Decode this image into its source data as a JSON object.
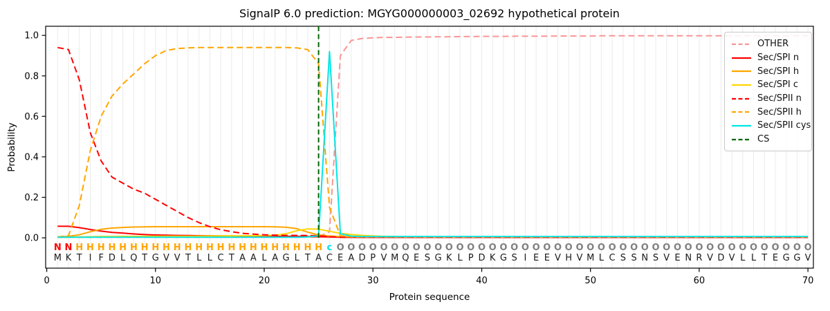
{
  "figure": {
    "title": "SignalP 6.0 prediction: MGYG000000003_02692 hypothetical protein",
    "xlabel": "Protein sequence",
    "ylabel": "Probability"
  },
  "chart_data": {
    "type": "line",
    "title": "SignalP 6.0 prediction: MGYG000000003_02692 hypothetical protein",
    "xlabel": "Protein sequence",
    "ylabel": "Probability",
    "x_range": [
      1,
      70
    ],
    "xlim": [
      -0.1,
      70.5
    ],
    "ylim": [
      -0.15,
      1.045
    ],
    "xticks": [
      0,
      10,
      20,
      30,
      40,
      50,
      60,
      70
    ],
    "yticks": [
      0.0,
      0.2,
      0.4,
      0.6,
      0.8,
      1.0
    ],
    "ytick_labels": [
      "0.0",
      "0.2",
      "0.4",
      "0.6",
      "0.8",
      "1.0"
    ],
    "grid": "vertical gridline at every residue position 1-70",
    "legend_position": "upper-right",
    "series": [
      {
        "name": "OTHER",
        "color": "#f99595",
        "dash": true,
        "values": [
          0.003,
          0.003,
          0.003,
          0.003,
          0.003,
          0.003,
          0.003,
          0.003,
          0.003,
          0.003,
          0.003,
          0.003,
          0.003,
          0.003,
          0.003,
          0.003,
          0.003,
          0.003,
          0.003,
          0.003,
          0.003,
          0.003,
          0.003,
          0.003,
          0.005,
          0.03,
          0.9,
          0.975,
          0.985,
          0.988,
          0.99,
          0.99,
          0.991,
          0.992,
          0.992,
          0.993,
          0.993,
          0.994,
          0.994,
          0.995,
          0.995,
          0.995,
          0.996,
          0.996,
          0.996,
          0.996,
          0.997,
          0.997,
          0.997,
          0.997,
          0.998,
          0.998,
          0.998,
          0.998,
          0.998,
          0.998,
          0.998,
          0.998,
          0.998,
          0.998,
          0.998,
          0.998,
          0.998,
          0.998,
          0.998,
          0.998,
          0.998,
          0.998,
          0.998,
          0.998
        ]
      },
      {
        "name": "Sec/SPI n",
        "color": "#ff0000",
        "dash": false,
        "values": [
          0.057,
          0.057,
          0.05,
          0.041,
          0.033,
          0.027,
          0.023,
          0.019,
          0.016,
          0.014,
          0.013,
          0.012,
          0.011,
          0.01,
          0.01,
          0.009,
          0.009,
          0.008,
          0.008,
          0.008,
          0.007,
          0.007,
          0.007,
          0.006,
          0.005,
          0.004,
          0.003,
          0.002,
          0.002,
          0.002,
          0.002,
          0.002,
          0.002,
          0.002,
          0.002,
          0.002,
          0.002,
          0.002,
          0.002,
          0.002,
          0.002,
          0.002,
          0.002,
          0.002,
          0.002,
          0.002,
          0.002,
          0.002,
          0.002,
          0.002,
          0.002,
          0.002,
          0.002,
          0.002,
          0.002,
          0.002,
          0.002,
          0.002,
          0.002,
          0.002,
          0.002,
          0.002,
          0.002,
          0.002,
          0.002,
          0.002,
          0.002,
          0.002,
          0.002,
          0.002
        ]
      },
      {
        "name": "Sec/SPI h",
        "color": "#ffa500",
        "dash": false,
        "values": [
          0.004,
          0.007,
          0.015,
          0.03,
          0.042,
          0.048,
          0.051,
          0.053,
          0.054,
          0.055,
          0.055,
          0.055,
          0.055,
          0.055,
          0.055,
          0.055,
          0.055,
          0.055,
          0.055,
          0.055,
          0.054,
          0.052,
          0.045,
          0.028,
          0.014,
          0.009,
          0.006,
          0.005,
          0.004,
          0.004,
          0.004,
          0.004,
          0.004,
          0.004,
          0.004,
          0.004,
          0.004,
          0.004,
          0.004,
          0.004,
          0.004,
          0.004,
          0.004,
          0.004,
          0.004,
          0.004,
          0.004,
          0.004,
          0.004,
          0.004,
          0.004,
          0.004,
          0.004,
          0.004,
          0.004,
          0.004,
          0.004,
          0.004,
          0.004,
          0.004,
          0.004,
          0.004,
          0.004,
          0.004,
          0.004,
          0.004,
          0.004,
          0.004,
          0.004,
          0.004
        ]
      },
      {
        "name": "Sec/SPI c",
        "color": "#ffd700",
        "dash": false,
        "values": [
          0.002,
          0.003,
          0.004,
          0.005,
          0.006,
          0.006,
          0.007,
          0.007,
          0.007,
          0.008,
          0.008,
          0.008,
          0.008,
          0.008,
          0.009,
          0.009,
          0.009,
          0.01,
          0.01,
          0.011,
          0.013,
          0.02,
          0.035,
          0.044,
          0.043,
          0.032,
          0.022,
          0.016,
          0.012,
          0.009,
          0.007,
          0.006,
          0.005,
          0.005,
          0.004,
          0.004,
          0.004,
          0.004,
          0.004,
          0.004,
          0.004,
          0.004,
          0.004,
          0.004,
          0.004,
          0.004,
          0.004,
          0.004,
          0.004,
          0.004,
          0.004,
          0.004,
          0.004,
          0.004,
          0.004,
          0.004,
          0.004,
          0.004,
          0.004,
          0.004,
          0.004,
          0.004,
          0.004,
          0.004,
          0.004,
          0.004,
          0.004,
          0.004,
          0.004,
          0.004
        ]
      },
      {
        "name": "Sec/SPII n",
        "color": "#ff0000",
        "dash": true,
        "values": [
          0.94,
          0.93,
          0.78,
          0.52,
          0.38,
          0.3,
          0.27,
          0.24,
          0.22,
          0.19,
          0.16,
          0.13,
          0.1,
          0.075,
          0.055,
          0.04,
          0.03,
          0.022,
          0.018,
          0.015,
          0.013,
          0.012,
          0.012,
          0.011,
          0.01,
          0.005,
          0.003,
          0.002,
          0.002,
          0.002,
          0.002,
          0.002,
          0.002,
          0.002,
          0.002,
          0.002,
          0.002,
          0.002,
          0.002,
          0.002,
          0.002,
          0.002,
          0.002,
          0.002,
          0.002,
          0.002,
          0.002,
          0.002,
          0.002,
          0.002,
          0.002,
          0.002,
          0.002,
          0.002,
          0.002,
          0.002,
          0.002,
          0.002,
          0.002,
          0.002,
          0.002,
          0.002,
          0.002,
          0.002,
          0.002,
          0.002,
          0.002,
          0.002,
          0.002,
          0.002
        ]
      },
      {
        "name": "Sec/SPII h",
        "color": "#ffa500",
        "dash": true,
        "values": [
          0.004,
          0.01,
          0.16,
          0.43,
          0.6,
          0.7,
          0.76,
          0.81,
          0.86,
          0.9,
          0.925,
          0.935,
          0.938,
          0.94,
          0.94,
          0.94,
          0.94,
          0.94,
          0.94,
          0.94,
          0.94,
          0.94,
          0.938,
          0.93,
          0.86,
          0.15,
          0.01,
          0.005,
          0.005,
          0.005,
          0.005,
          0.005,
          0.005,
          0.005,
          0.005,
          0.005,
          0.005,
          0.005,
          0.005,
          0.005,
          0.005,
          0.005,
          0.005,
          0.005,
          0.005,
          0.005,
          0.005,
          0.005,
          0.005,
          0.005,
          0.005,
          0.005,
          0.005,
          0.005,
          0.005,
          0.005,
          0.005,
          0.005,
          0.005,
          0.005,
          0.005,
          0.005,
          0.005,
          0.005,
          0.005,
          0.005,
          0.005,
          0.005,
          0.005,
          0.005
        ]
      },
      {
        "name": "Sec/SPII cys",
        "color": "#00e5e5",
        "dash": false,
        "values": [
          0.003,
          0.003,
          0.003,
          0.003,
          0.003,
          0.003,
          0.003,
          0.003,
          0.003,
          0.003,
          0.003,
          0.003,
          0.003,
          0.003,
          0.003,
          0.003,
          0.003,
          0.003,
          0.003,
          0.003,
          0.003,
          0.003,
          0.003,
          0.004,
          0.01,
          0.92,
          0.02,
          0.008,
          0.006,
          0.006,
          0.006,
          0.006,
          0.006,
          0.006,
          0.006,
          0.006,
          0.006,
          0.006,
          0.006,
          0.006,
          0.006,
          0.006,
          0.006,
          0.006,
          0.006,
          0.006,
          0.006,
          0.006,
          0.006,
          0.006,
          0.006,
          0.006,
          0.006,
          0.006,
          0.006,
          0.006,
          0.006,
          0.006,
          0.006,
          0.006,
          0.006,
          0.006,
          0.006,
          0.006,
          0.006,
          0.006,
          0.006,
          0.006,
          0.006,
          0.006
        ]
      }
    ],
    "cs_line": {
      "name": "CS",
      "color": "#006400",
      "dash": true,
      "position": 25
    },
    "sequence": {
      "residues": "MKTIFDLQTGVVTLLCTAALAGLTACEADPVMQESGKLPDKGSIEEVHVMLCSSNSVENRVDVLLTEGGV",
      "regions": "NNHHHHHHHHHHHHHHHHHHHHHHHcOOOOOOOOOOOOOOOOOOOOOOOOOOOOOOOOOOOOOOOOOOOO",
      "region_colors": {
        "N": "#ff0000",
        "H": "#ffa500",
        "c": "#00e0e8",
        "O": "#7f7f7f"
      },
      "residue_color": "#1a1a1a"
    },
    "style": {
      "grid_color": "#ebebeb",
      "spine_color": "#000000",
      "legend_border_color": "#c9c9c9"
    }
  }
}
